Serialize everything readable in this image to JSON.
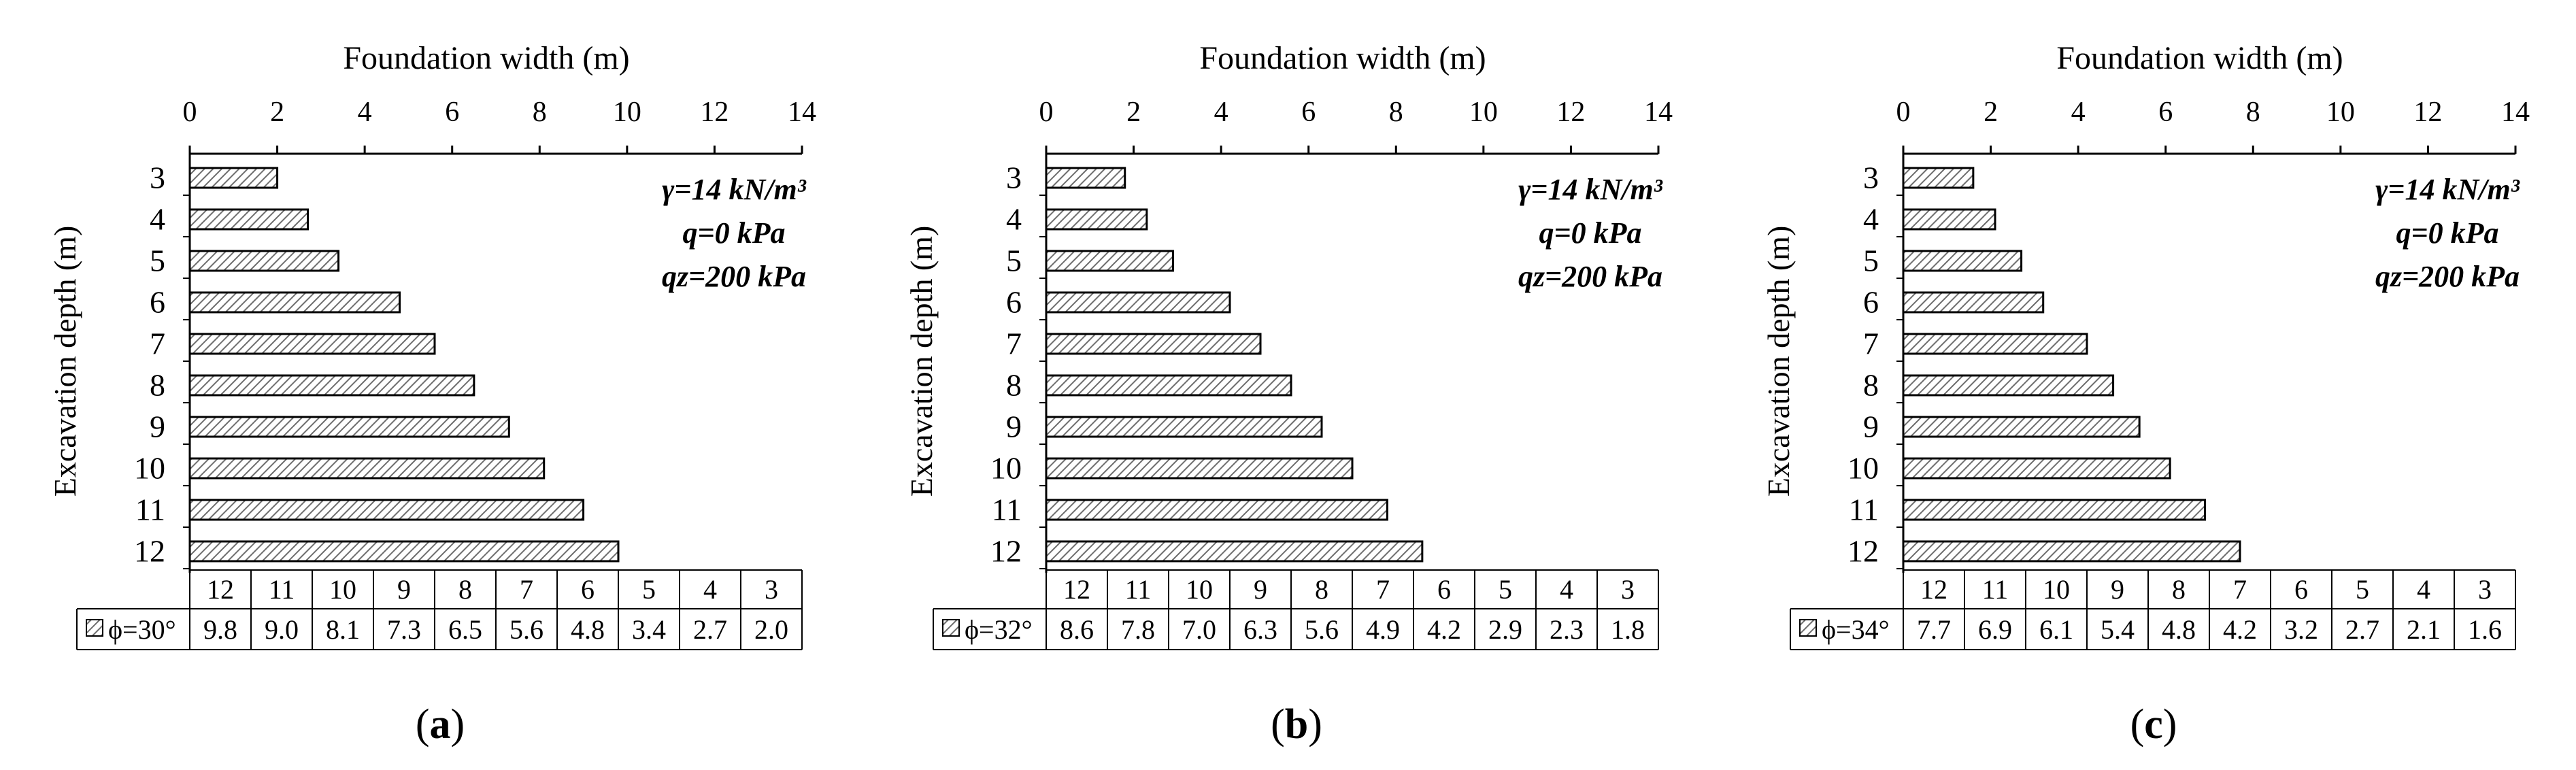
{
  "chart_data": [
    {
      "type": "bar",
      "panel_label": "a",
      "title": "Foundation width (m)",
      "ylabel": "Excavation depth (m)",
      "xlim": [
        0,
        14
      ],
      "xticks": [
        "0",
        "2",
        "4",
        "6",
        "8",
        "10",
        "12",
        "14"
      ],
      "categories": [
        "3",
        "4",
        "5",
        "6",
        "7",
        "8",
        "9",
        "10",
        "11",
        "12"
      ],
      "values": [
        2.0,
        2.7,
        3.4,
        4.8,
        5.6,
        6.5,
        7.3,
        8.1,
        9.0,
        9.8
      ],
      "annotations": [
        "γ=14 kN/m³",
        "q=0 kPa",
        "qz=200 kPa"
      ],
      "table": {
        "header": [
          "12",
          "11",
          "10",
          "9",
          "8",
          "7",
          "6",
          "5",
          "4",
          "3"
        ],
        "series_label": "ϕ=30°",
        "row": [
          "9.8",
          "9.0",
          "8.1",
          "7.3",
          "6.5",
          "5.6",
          "4.8",
          "3.4",
          "2.7",
          "2.0"
        ]
      }
    },
    {
      "type": "bar",
      "panel_label": "b",
      "title": "Foundation width (m)",
      "ylabel": "Excavation depth (m)",
      "xlim": [
        0,
        14
      ],
      "xticks": [
        "0",
        "2",
        "4",
        "6",
        "8",
        "10",
        "12",
        "14"
      ],
      "categories": [
        "3",
        "4",
        "5",
        "6",
        "7",
        "8",
        "9",
        "10",
        "11",
        "12"
      ],
      "values": [
        1.8,
        2.3,
        2.9,
        4.2,
        4.9,
        5.6,
        6.3,
        7.0,
        7.8,
        8.6
      ],
      "annotations": [
        "γ=14 kN/m³",
        "q=0 kPa",
        "qz=200 kPa"
      ],
      "table": {
        "header": [
          "12",
          "11",
          "10",
          "9",
          "8",
          "7",
          "6",
          "5",
          "4",
          "3"
        ],
        "series_label": "ϕ=32°",
        "row": [
          "8.6",
          "7.8",
          "7.0",
          "6.3",
          "5.6",
          "4.9",
          "4.2",
          "2.9",
          "2.3",
          "1.8"
        ]
      }
    },
    {
      "type": "bar",
      "panel_label": "c",
      "title": "Foundation width (m)",
      "ylabel": "Excavation depth (m)",
      "xlim": [
        0,
        14
      ],
      "xticks": [
        "0",
        "2",
        "4",
        "6",
        "8",
        "10",
        "12",
        "14"
      ],
      "categories": [
        "3",
        "4",
        "5",
        "6",
        "7",
        "8",
        "9",
        "10",
        "11",
        "12"
      ],
      "values": [
        1.6,
        2.1,
        2.7,
        3.2,
        4.2,
        4.8,
        5.4,
        6.1,
        6.9,
        7.7
      ],
      "annotations": [
        "γ=14 kN/m³",
        "q=0 kPa",
        "qz=200 kPa"
      ],
      "table": {
        "header": [
          "12",
          "11",
          "10",
          "9",
          "8",
          "7",
          "6",
          "5",
          "4",
          "3"
        ],
        "series_label": "ϕ=34°",
        "row": [
          "7.7",
          "6.9",
          "6.1",
          "5.4",
          "4.8",
          "4.2",
          "3.2",
          "2.7",
          "2.1",
          "1.6"
        ]
      }
    }
  ]
}
